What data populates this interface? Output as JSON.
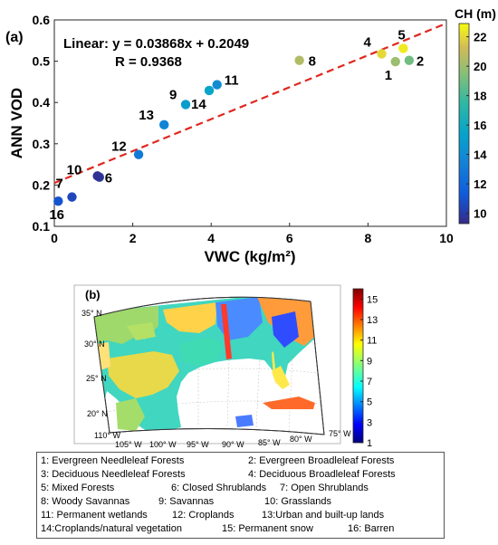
{
  "chart_data": [
    {
      "type": "scatter",
      "panel_label": "(a)",
      "xlabel": "VWC (kg/m²)",
      "ylabel": "ANN VOD",
      "xlim": [
        0,
        10
      ],
      "ylim": [
        0.1,
        0.6
      ],
      "xticks": [
        "0",
        "2",
        "4",
        "6",
        "8",
        "10"
      ],
      "yticks": [
        "0.1",
        "0.2",
        "0.3",
        "0.4",
        "0.5",
        "0.6"
      ],
      "grid": false,
      "equation": "Linear:  y = 0.03868x + 0.2049",
      "r_text": "R =  0.9368",
      "fit": {
        "slope": 0.03868,
        "intercept": 0.2049,
        "style": "dashed",
        "color": "#e0271f"
      },
      "colorbar": {
        "title": "CH (m)",
        "range": [
          9.3,
          22.9
        ],
        "ticks": [
          "10",
          "12",
          "14",
          "16",
          "18",
          "20",
          "22"
        ]
      },
      "points": [
        {
          "label": "1",
          "x": 8.7,
          "y": 0.499,
          "ch": 20.0
        },
        {
          "label": "2",
          "x": 9.05,
          "y": 0.502,
          "ch": 19.0
        },
        {
          "label": "4",
          "x": 8.35,
          "y": 0.518,
          "ch": 22.0
        },
        {
          "label": "5",
          "x": 8.9,
          "y": 0.531,
          "ch": 22.5
        },
        {
          "label": "6",
          "x": 1.15,
          "y": 0.219,
          "ch": 9.8
        },
        {
          "label": "7",
          "x": 0.45,
          "y": 0.171,
          "ch": 10.5
        },
        {
          "label": "8",
          "x": 6.25,
          "y": 0.502,
          "ch": 20.5
        },
        {
          "label": "9",
          "x": 3.35,
          "y": 0.395,
          "ch": 15.0
        },
        {
          "label": "10",
          "x": 1.1,
          "y": 0.222,
          "ch": 9.6
        },
        {
          "label": "11",
          "x": 4.15,
          "y": 0.443,
          "ch": 14.0
        },
        {
          "label": "12",
          "x": 2.15,
          "y": 0.274,
          "ch": 13.0
        },
        {
          "label": "13",
          "x": 2.8,
          "y": 0.346,
          "ch": 13.5
        },
        {
          "label": "14",
          "x": 3.95,
          "y": 0.429,
          "ch": 15.5
        },
        {
          "label": "16",
          "x": 0.1,
          "y": 0.161,
          "ch": 11.0
        }
      ]
    },
    {
      "type": "heatmap",
      "panel_label": "(b)",
      "colorbar": {
        "range": [
          1,
          16
        ],
        "ticks": [
          "15",
          "13",
          "11",
          "9",
          "7",
          "5",
          "3",
          "1"
        ]
      },
      "lat_labels": [
        "35° N",
        "30° N",
        "25° N",
        "20° N"
      ],
      "lon_labels": [
        "110° W",
        "105° W",
        "100° W",
        "95° W",
        "90° W",
        "85° W",
        "80° W",
        "75° W"
      ]
    }
  ],
  "legend": [
    [
      "1: Evergreen Needleleaf Forests",
      "2: Evergreen Broadleleaf Forests"
    ],
    [
      "3: Deciduous Needleleaf Forests",
      "4: Deciduous Broadleleaf Forests"
    ],
    [
      "5: Mixed Forests",
      "6: Closed Shrublands",
      "7: Open Shrublands"
    ],
    [
      "8: Woody Savannas",
      "9: Savannas",
      "10: Grasslands"
    ],
    [
      "11: Permanent wetlands",
      "12: Croplands",
      "13:Urban and built-up lands"
    ],
    [
      "14:Croplands/natural vegetation",
      "15: Permanent snow",
      "16: Barren"
    ]
  ]
}
